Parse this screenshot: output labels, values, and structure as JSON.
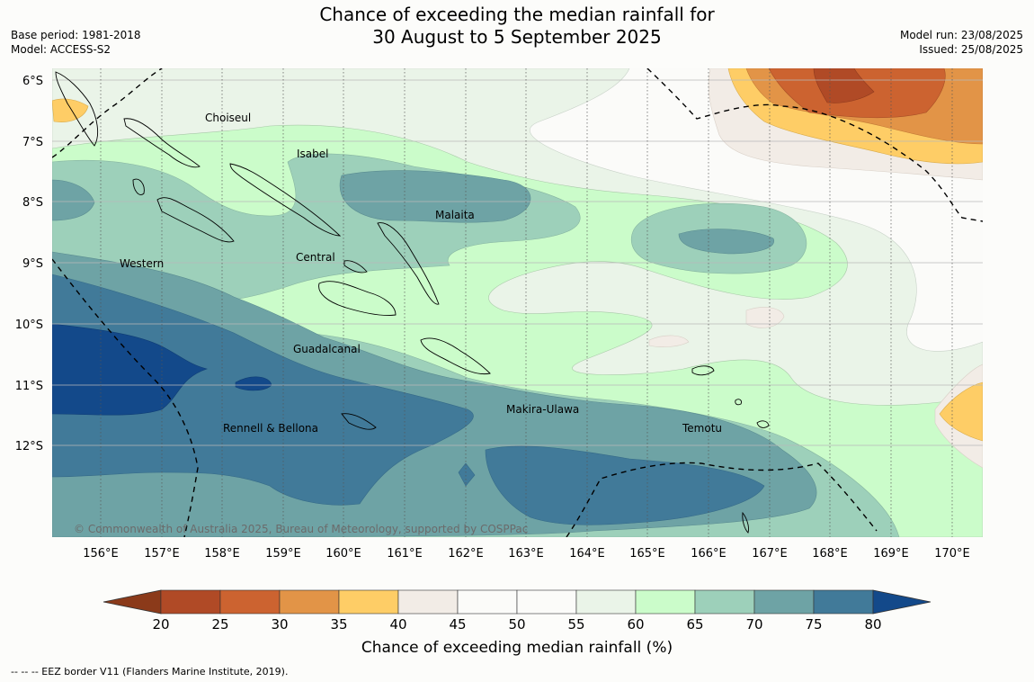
{
  "header": {
    "title_line1": "Chance of exceeding the median rainfall for",
    "title_line2": "30 August to 5 September 2025",
    "base_period": "Base period: 1981-2018",
    "model": "Model: ACCESS-S2",
    "model_run": "Model run: 23/08/2025",
    "issued": "Issued: 25/08/2025"
  },
  "map": {
    "lat_labels": [
      "6°S",
      "7°S",
      "8°S",
      "9°S",
      "10°S",
      "11°S",
      "12°S"
    ],
    "lon_labels": [
      "156°E",
      "157°E",
      "158°E",
      "159°E",
      "160°E",
      "161°E",
      "162°E",
      "163°E",
      "164°E",
      "165°E",
      "166°E",
      "167°E",
      "168°E",
      "169°E",
      "170°E"
    ],
    "places": [
      "Choiseul",
      "Isabel",
      "Malaita",
      "Western",
      "Central",
      "Guadalcanal",
      "Makira-Ulawa",
      "Rennell & Bellona",
      "Temotu"
    ],
    "copyright": "© Commonwealth of Australia 2025, Bureau of Meteorology, supported by COSPPac"
  },
  "colorbar": {
    "ticks": [
      "20",
      "25",
      "30",
      "35",
      "40",
      "45",
      "50",
      "55",
      "60",
      "65",
      "70",
      "75",
      "80"
    ],
    "colors": [
      "#8b3a1a",
      "#b04a26",
      "#cc6330",
      "#e29447",
      "#fecd66",
      "#f2ece6",
      "#fbfbf9",
      "#fbfbf9",
      "#eaf4e8",
      "#cbfcca",
      "#9dd0ba",
      "#6ea3a5",
      "#417a99",
      "#13498a"
    ],
    "title": "Chance of exceeding median rainfall (%)"
  },
  "legend": {
    "eez": "--  --  -- EEZ border V11 (Flanders Marine Institute, 2019)."
  }
}
